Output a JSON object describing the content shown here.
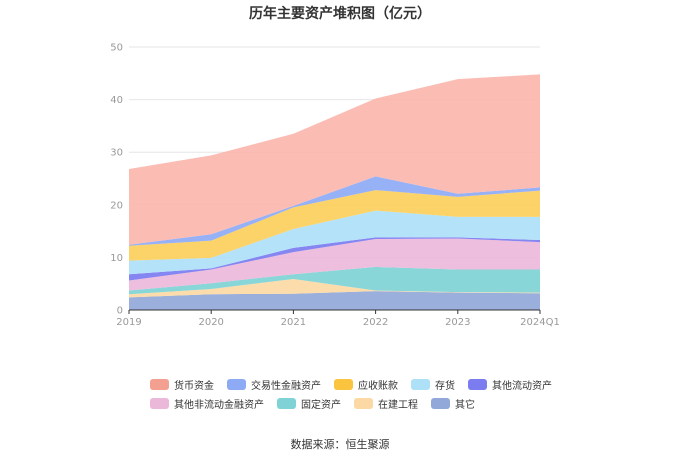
{
  "chart_data": {
    "type": "area",
    "stacked": true,
    "title": "历年主要资产堆积图（亿元）",
    "categories": [
      "2019",
      "2020",
      "2021",
      "2022",
      "2023",
      "2024Q1"
    ],
    "ylim": [
      0,
      50
    ],
    "yticks": [
      0,
      10,
      20,
      30,
      40,
      50
    ],
    "grid": true,
    "legend_position": "bottom",
    "series": [
      {
        "name": "其它",
        "color": "#91a8d8",
        "values": [
          2.4,
          3.0,
          3.1,
          3.6,
          3.3,
          3.2
        ]
      },
      {
        "name": "在建工程",
        "color": "#fcd9a4",
        "values": [
          0.6,
          1.0,
          2.8,
          0.1,
          0.1,
          0.1
        ]
      },
      {
        "name": "固定资产",
        "color": "#7fd3d6",
        "values": [
          0.7,
          1.1,
          0.9,
          4.5,
          4.3,
          4.4
        ]
      },
      {
        "name": "其他非流动金融资产",
        "color": "#ecb8da",
        "values": [
          1.9,
          2.6,
          4.2,
          5.3,
          5.9,
          5.2
        ]
      },
      {
        "name": "其他流动资产",
        "color": "#7b7cf0",
        "values": [
          1.2,
          0.2,
          0.8,
          0.3,
          0.2,
          0.4
        ]
      },
      {
        "name": "存货",
        "color": "#aee0f7",
        "values": [
          2.6,
          2.0,
          3.6,
          5.1,
          3.9,
          4.4
        ]
      },
      {
        "name": "应收账款",
        "color": "#fccf5c",
        "values": [
          2.8,
          3.3,
          4.1,
          3.9,
          3.8,
          5.0
        ]
      },
      {
        "name": "交易性金融资产",
        "color": "#8eaaf5",
        "values": [
          0.2,
          1.2,
          0.3,
          2.6,
          0.6,
          0.6
        ]
      },
      {
        "name": "货币资金",
        "color": "#fbb6ae",
        "values": [
          14.4,
          15.0,
          13.7,
          14.8,
          21.8,
          21.5
        ]
      }
    ]
  },
  "legend_order": [
    {
      "name": "货币资金",
      "color": "#f4a090"
    },
    {
      "name": "交易性金融资产",
      "color": "#8eaaf5"
    },
    {
      "name": "应收账款",
      "color": "#fbc43e"
    },
    {
      "name": "存货",
      "color": "#aee0f7"
    },
    {
      "name": "其他流动资产",
      "color": "#7b7cf0"
    },
    {
      "name": "其他非流动金融资产",
      "color": "#ecb8da"
    },
    {
      "name": "固定资产",
      "color": "#7fd3d6"
    },
    {
      "name": "在建工程",
      "color": "#fcd9a4"
    },
    {
      "name": "其它",
      "color": "#91a8d8"
    }
  ],
  "source": "数据来源：恒生聚源"
}
